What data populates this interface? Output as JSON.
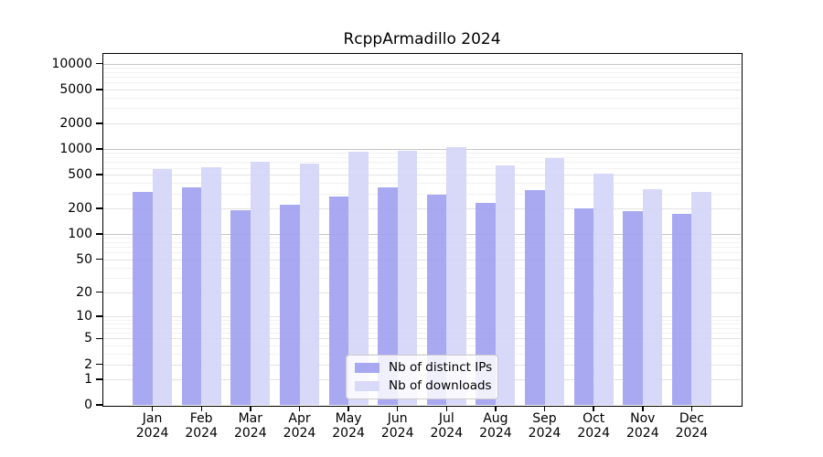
{
  "title": "RcppArmadillo 2024",
  "chart_data": {
    "type": "bar",
    "title": "RcppArmadillo 2024",
    "months": [
      "Jan",
      "Feb",
      "Mar",
      "Apr",
      "May",
      "Jun",
      "Jul",
      "Aug",
      "Sep",
      "Oct",
      "Nov",
      "Dec"
    ],
    "year": "2024",
    "categories": [
      "Jan 2024",
      "Feb 2024",
      "Mar 2024",
      "Apr 2024",
      "May 2024",
      "Jun 2024",
      "Jul 2024",
      "Aug 2024",
      "Sep 2024",
      "Oct 2024",
      "Nov 2024",
      "Dec 2024"
    ],
    "series": [
      {
        "name": "Nb of distinct IPs",
        "color": "#a0a0f1",
        "values": [
          315,
          352,
          189,
          219,
          279,
          352,
          293,
          231,
          331,
          200,
          187,
          173
        ]
      },
      {
        "name": "Nb of downloads",
        "color": "#d4d4f8",
        "values": [
          585,
          611,
          714,
          669,
          936,
          959,
          1058,
          647,
          790,
          513,
          340,
          313
        ]
      }
    ],
    "xlabel": "",
    "ylabel": "",
    "y_scale": "log1p",
    "y_ticks": [
      0,
      1,
      2,
      5,
      10,
      20,
      50,
      100,
      200,
      500,
      1000,
      2000,
      5000,
      10000
    ],
    "ylim": [
      0,
      13000
    ],
    "y_max": 13000,
    "grid": true,
    "legend_position": "lower center"
  },
  "legend": {
    "items": [
      {
        "label": "Nb of distinct IPs",
        "color": "#a8a8f2"
      },
      {
        "label": "Nb of downloads",
        "color": "#d9d9f8"
      }
    ]
  },
  "colors": {
    "bar_distinct_ips": "#a0a0f1",
    "bar_downloads": "#d4d4f8",
    "grid_major": "#c6c6c6",
    "grid_labeled": "#e3e3e3",
    "grid_minor": "#f2f2f2",
    "spine": "#000000",
    "background": "#ffffff"
  }
}
